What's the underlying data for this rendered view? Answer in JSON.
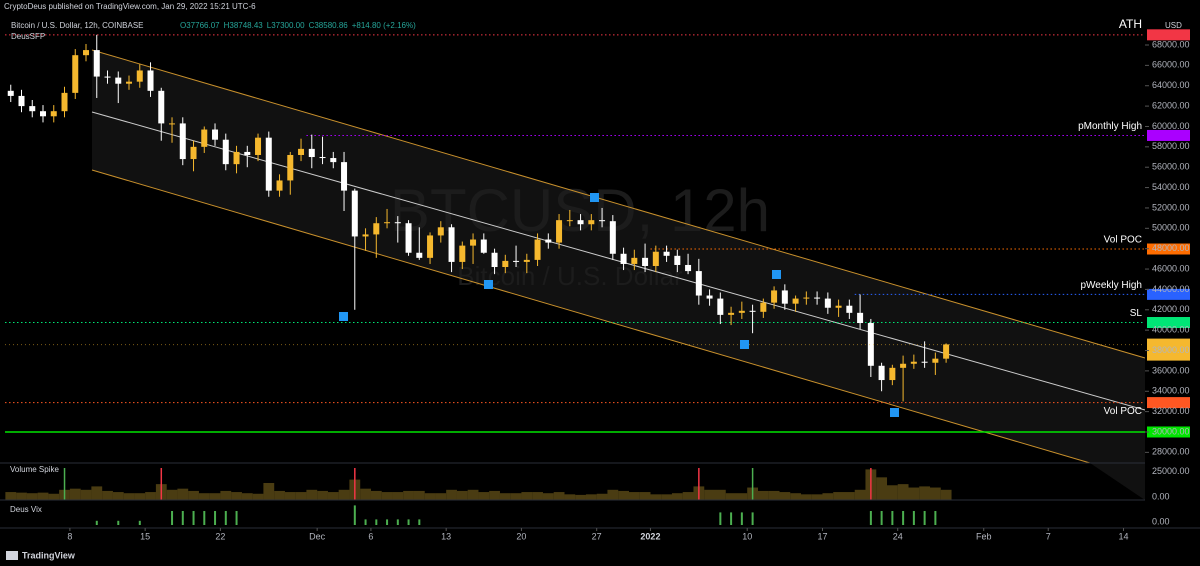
{
  "header": {
    "published": "CryptoDeus published on TradingView.com, Jan 29, 2022 15:21 UTC-6",
    "symbol": "Bitcoin / U.S. Dollar, 12h, COINBASE",
    "ohlc": [
      "O37766.07",
      "H38748.43",
      "L37300.00",
      "C38580.86",
      "+814.80 (+2.16%)"
    ],
    "indicator": "DeusSFP",
    "currency": "USD",
    "footer": "TradingView"
  },
  "watermark": {
    "title": "BTCUSD, 12h",
    "subtitle": "Bitcoin / U.S. Dollar"
  },
  "chart_data": {
    "type": "candlestick",
    "x": [
      "2021-11-02",
      "2021-11-03",
      "2021-11-04",
      "2021-11-05",
      "2021-11-06",
      "2021-11-07",
      "2021-11-08",
      "2021-11-09",
      "2021-11-10",
      "2021-11-11",
      "2021-11-12",
      "2021-11-13",
      "2021-11-14",
      "2021-11-15",
      "2021-11-16",
      "2021-11-17",
      "2021-11-18",
      "2021-11-19",
      "2021-11-20",
      "2021-11-21",
      "2021-11-22",
      "2021-11-23",
      "2021-11-24",
      "2021-11-25",
      "2021-11-26",
      "2021-11-27",
      "2021-11-28",
      "2021-11-29",
      "2021-11-30",
      "2021-12-01",
      "2021-12-02",
      "2021-12-03",
      "2021-12-04",
      "2021-12-05",
      "2021-12-06",
      "2021-12-07",
      "2021-12-08",
      "2021-12-09",
      "2021-12-10",
      "2021-12-11",
      "2021-12-12",
      "2021-12-13",
      "2021-12-14",
      "2021-12-15",
      "2021-12-16",
      "2021-12-17",
      "2021-12-18",
      "2021-12-19",
      "2021-12-20",
      "2021-12-21",
      "2021-12-22",
      "2021-12-23",
      "2021-12-24",
      "2021-12-25",
      "2021-12-26",
      "2021-12-27",
      "2021-12-28",
      "2021-12-29",
      "2021-12-30",
      "2021-12-31",
      "2022-01-01",
      "2022-01-02",
      "2022-01-03",
      "2022-01-04",
      "2022-01-05",
      "2022-01-06",
      "2022-01-07",
      "2022-01-08",
      "2022-01-09",
      "2022-01-10",
      "2022-01-11",
      "2022-01-12",
      "2022-01-13",
      "2022-01-14",
      "2022-01-15",
      "2022-01-16",
      "2022-01-17",
      "2022-01-18",
      "2022-01-19",
      "2022-01-20",
      "2022-01-21",
      "2022-01-22",
      "2022-01-23",
      "2022-01-24",
      "2022-01-25",
      "2022-01-26",
      "2022-01-27",
      "2022-01-28"
    ],
    "open": [
      63500,
      63000,
      62000,
      61500,
      61000,
      61500,
      63300,
      67000,
      67500,
      64900,
      64800,
      64200,
      64400,
      65500,
      63500,
      60300,
      60300,
      56800,
      58000,
      59700,
      58700,
      56300,
      57500,
      57200,
      58900,
      53700,
      54700,
      57200,
      57800,
      57000,
      56900,
      56500,
      53700,
      49200,
      49400,
      50500,
      50600,
      50500,
      47600,
      47100,
      49300,
      50100,
      46700,
      48300,
      48900,
      47600,
      46200,
      46800,
      46700,
      46900,
      48900,
      48600,
      50800,
      50800,
      50400,
      50800,
      50700,
      47500,
      46500,
      47100,
      46300,
      47700,
      47300,
      46400,
      45800,
      43400,
      43100,
      41500,
      41700,
      41900,
      41800,
      42700,
      43900,
      42600,
      43100,
      43200,
      43100,
      42200,
      42400,
      41700,
      40700,
      36500,
      35100,
      36300,
      36700,
      36900,
      36800,
      37200
    ],
    "high": [
      64100,
      63600,
      62600,
      62100,
      62100,
      63900,
      67600,
      68100,
      69000,
      65500,
      65400,
      65000,
      66100,
      66300,
      63800,
      60900,
      60900,
      58600,
      60000,
      60300,
      59300,
      58100,
      58100,
      59300,
      59500,
      55300,
      57500,
      58800,
      59200,
      59000,
      57500,
      57500,
      53900,
      50000,
      51100,
      51900,
      51200,
      50800,
      50100,
      49600,
      50700,
      50400,
      48700,
      49500,
      49500,
      48000,
      47400,
      48300,
      47500,
      49500,
      49500,
      51400,
      51800,
      51400,
      51400,
      52000,
      51300,
      48100,
      47900,
      48500,
      48300,
      48300,
      47900,
      47500,
      47000,
      44000,
      43700,
      42300,
      42800,
      42500,
      43100,
      44300,
      44500,
      43400,
      43800,
      43800,
      43700,
      43000,
      43000,
      43500,
      41100,
      36800,
      36600,
      37500,
      37600,
      38900,
      37800,
      38700
    ],
    "low": [
      62400,
      61400,
      60900,
      60400,
      60400,
      60900,
      62700,
      66400,
      62800,
      64200,
      62300,
      63600,
      63800,
      62900,
      58600,
      58400,
      56200,
      55600,
      57400,
      58100,
      55700,
      55400,
      56000,
      56600,
      53100,
      53100,
      53300,
      56600,
      55900,
      56300,
      55900,
      51700,
      42000,
      47800,
      47100,
      50000,
      48600,
      47300,
      46900,
      46500,
      48600,
      45700,
      46000,
      46500,
      47500,
      45500,
      45600,
      46200,
      45600,
      46300,
      48000,
      48000,
      50200,
      49800,
      49800,
      50100,
      46900,
      45900,
      45900,
      45700,
      45700,
      46700,
      45700,
      45500,
      42500,
      42400,
      40600,
      40500,
      41100,
      39700,
      41200,
      42100,
      42000,
      41800,
      42500,
      42500,
      41600,
      41300,
      41100,
      40100,
      35400,
      34000,
      34600,
      33000,
      36200,
      36300,
      35600,
      36800
    ],
    "close": [
      63000,
      62000,
      61500,
      61000,
      61500,
      63300,
      67000,
      67500,
      64900,
      64800,
      64200,
      64400,
      65500,
      63500,
      60300,
      60300,
      56800,
      58000,
      59700,
      58700,
      56300,
      57500,
      57200,
      58900,
      53700,
      54700,
      57200,
      57800,
      57000,
      56900,
      56500,
      53700,
      49200,
      49400,
      50500,
      50600,
      50500,
      47600,
      47100,
      49300,
      50100,
      46700,
      48300,
      48900,
      47600,
      46200,
      46800,
      46700,
      46900,
      48900,
      48600,
      50800,
      50800,
      50400,
      50800,
      50700,
      47500,
      46500,
      47100,
      46300,
      47700,
      47300,
      46400,
      45800,
      43400,
      43100,
      41500,
      41700,
      41900,
      41800,
      42700,
      43900,
      42600,
      43100,
      43200,
      43100,
      42200,
      42400,
      41700,
      40700,
      36500,
      35100,
      36300,
      36700,
      36900,
      36800,
      37200,
      38600
    ],
    "up_color": "#f5b82e",
    "down_color": "#ffffff",
    "xlim": [
      "2021-11-01 12:00",
      "2022-02-16 00:00"
    ],
    "xticks": [
      {
        "value": "2021-11-08",
        "label": "8"
      },
      {
        "value": "2021-11-15",
        "label": "15"
      },
      {
        "value": "2021-11-22",
        "label": "22"
      },
      {
        "value": "2021-12-01",
        "label": "Dec"
      },
      {
        "value": "2021-12-06",
        "label": "6"
      },
      {
        "value": "2021-12-13",
        "label": "13"
      },
      {
        "value": "2021-12-20",
        "label": "20"
      },
      {
        "value": "2021-12-27",
        "label": "27"
      },
      {
        "value": "2022-01-01",
        "label": "2022"
      },
      {
        "value": "2022-01-10",
        "label": "10"
      },
      {
        "value": "2022-01-17",
        "label": "17"
      },
      {
        "value": "2022-01-24",
        "label": "24"
      },
      {
        "value": "2022-02-01",
        "label": "Feb"
      },
      {
        "value": "2022-02-07",
        "label": "7"
      },
      {
        "value": "2022-02-14",
        "label": "14"
      }
    ],
    "ylim": [
      26955,
      70455
    ],
    "yticks": [
      {
        "value": 28000,
        "label": "28000.00"
      },
      {
        "value": 30000,
        "label": "30000.00"
      },
      {
        "value": 32000,
        "label": "32000.00"
      },
      {
        "value": 34000,
        "label": "34000.00"
      },
      {
        "value": 36000,
        "label": "36000.00"
      },
      {
        "value": 38000,
        "label": "38000.00"
      },
      {
        "value": 40000,
        "label": "40000.00"
      },
      {
        "value": 42000,
        "label": "42000.00"
      },
      {
        "value": 44000,
        "label": "44000.00"
      },
      {
        "value": 46000,
        "label": "46000.00"
      },
      {
        "value": 48000,
        "label": "48000.00"
      },
      {
        "value": 50000,
        "label": "50000.00"
      },
      {
        "value": 52000,
        "label": "52000.00"
      },
      {
        "value": 54000,
        "label": "54000.00"
      },
      {
        "value": 56000,
        "label": "56000.00"
      },
      {
        "value": 58000,
        "label": "58000.00"
      },
      {
        "value": 60000,
        "label": "60000.00"
      },
      {
        "value": 62000,
        "label": "62000.00"
      },
      {
        "value": 64000,
        "label": "64000.00"
      },
      {
        "value": 66000,
        "label": "66000.00"
      },
      {
        "value": 68000,
        "label": "68000.00"
      }
    ],
    "levels": [
      {
        "value": 69000,
        "label": "69000.00",
        "name": "ATH",
        "color": "#f23645"
      },
      {
        "value": 59118.84,
        "label": "59118.84",
        "name": "pMonthly High",
        "color": "#aa00ff",
        "from": "2021-11-30"
      },
      {
        "value": 47967.12,
        "label": "47967.12",
        "name": "Vol POC",
        "color": "#ff6d00",
        "from": "2022-01-01"
      },
      {
        "value": 43511.99,
        "label": "43511.99",
        "name": "pWeekly High",
        "color": "#2962ff",
        "from": "2022-01-20"
      },
      {
        "value": 40750.12,
        "label": "40750.12",
        "name": "SL",
        "color": "#00e676"
      },
      {
        "value": 32885.98,
        "label": "32885.98",
        "name": "Vol POC",
        "color": "#ff5722"
      },
      {
        "value": 30000,
        "label": "30000.00",
        "color": "#00e600",
        "solid": true
      }
    ],
    "last_price": {
      "value": 38580.86,
      "label": "38580.86",
      "countdown": "02:38:38",
      "color": "#f5b82e"
    },
    "volume": {
      "name": "Volume Spike",
      "color": "#4a3c12",
      "values": [
        7000,
        6500,
        6000,
        6500,
        5500,
        9000,
        10000,
        9000,
        12000,
        8000,
        7000,
        6000,
        6000,
        7000,
        14000,
        9000,
        10000,
        8000,
        6000,
        6000,
        8000,
        7000,
        6000,
        5500,
        15000,
        8000,
        7000,
        7000,
        9000,
        8000,
        7000,
        9000,
        18000,
        10000,
        8000,
        7000,
        7000,
        8000,
        8000,
        6000,
        6000,
        9000,
        8000,
        9000,
        7000,
        8000,
        6000,
        6000,
        7000,
        7000,
        6000,
        7000,
        5000,
        4500,
        5000,
        5500,
        9000,
        8000,
        7000,
        7000,
        5000,
        5000,
        6000,
        7000,
        12000,
        9000,
        9000,
        6000,
        6000,
        11000,
        8000,
        8000,
        7000,
        6000,
        5000,
        5000,
        6000,
        7000,
        7000,
        9000,
        27000,
        20000,
        13000,
        14000,
        11000,
        12000,
        11000,
        9000
      ],
      "spikes": [
        {
          "x": "2021-11-07",
          "color": "#4caf50"
        },
        {
          "x": "2021-11-16",
          "color": "#f23645"
        },
        {
          "x": "2021-12-04",
          "color": "#f23645"
        },
        {
          "x": "2022-01-05",
          "color": "#f23645"
        },
        {
          "x": "2022-01-10",
          "color": "#4caf50"
        },
        {
          "x": "2022-01-21",
          "color": "#f23645"
        }
      ],
      "ylim": [
        0,
        30000
      ],
      "yticks": [
        {
          "value": 25000,
          "label": "25000.00"
        },
        {
          "value": 0,
          "label": "0.00"
        }
      ]
    },
    "vix": {
      "name": "Deus Vix",
      "color": "#4caf50",
      "x": [
        "2021-11-10",
        "2021-11-12",
        "2021-11-14",
        "2021-11-17",
        "2021-11-18",
        "2021-11-19",
        "2021-11-20",
        "2021-11-21",
        "2021-11-22",
        "2021-11-23",
        "2021-12-04",
        "2021-12-05",
        "2021-12-06",
        "2021-12-07",
        "2021-12-08",
        "2021-12-09",
        "2021-12-10",
        "2022-01-07",
        "2022-01-08",
        "2022-01-09",
        "2022-01-10",
        "2022-01-21",
        "2022-01-22",
        "2022-01-23",
        "2022-01-24",
        "2022-01-25",
        "2022-01-26",
        "2022-01-27"
      ],
      "values": [
        0.3,
        0.3,
        0.3,
        1,
        1,
        1,
        1,
        1,
        1,
        1,
        1.4,
        0.4,
        0.4,
        0.4,
        0.4,
        0.4,
        0.4,
        0.9,
        0.9,
        0.9,
        0.9,
        1,
        1,
        1,
        1,
        1,
        1,
        1
      ],
      "ylim": [
        0,
        1.5
      ],
      "yticks": [
        {
          "value": 0,
          "label": "0.00"
        }
      ]
    }
  }
}
